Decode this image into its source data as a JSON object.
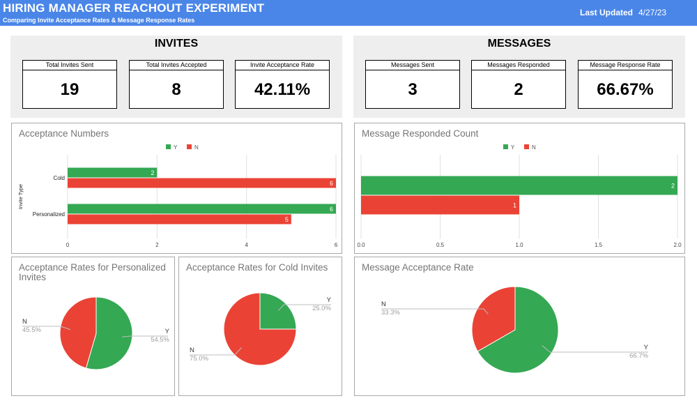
{
  "header": {
    "title": "HIRING MANAGER REACHOUT EXPERIMENT",
    "subtitle": "Comparing Invite Acceptance Rates & Message Response Rates",
    "updated_label": "Last Updated",
    "updated_date": "4/27/23"
  },
  "invites": {
    "title": "INVITES",
    "kpis": [
      {
        "label": "Total Invites Sent",
        "value": "19"
      },
      {
        "label": "Total Invites Accepted",
        "value": "8"
      },
      {
        "label": "Invite Acceptance Rate",
        "value": "42.11%"
      }
    ]
  },
  "messages": {
    "title": "MESSAGES",
    "kpis": [
      {
        "label": "Messages Sent",
        "value": "3"
      },
      {
        "label": "Messages Responded",
        "value": "2"
      },
      {
        "label": "Message Response Rate",
        "value": "66.67%"
      }
    ]
  },
  "colors": {
    "Y": "#34a853",
    "N": "#ea4335",
    "grid": "#e0e0e0",
    "label": "#9e9e9e"
  },
  "chart_data": [
    {
      "type": "bar",
      "orientation": "horizontal",
      "title": "Acceptance Numbers",
      "ylabel": "Invite Type",
      "categories": [
        "Cold",
        "Personalized"
      ],
      "series": [
        {
          "name": "Y",
          "values": [
            2,
            6
          ]
        },
        {
          "name": "N",
          "values": [
            6,
            5
          ]
        }
      ],
      "xlim": [
        0,
        6
      ],
      "ticks": [
        "0",
        "2",
        "4",
        "6"
      ],
      "legend": "top"
    },
    {
      "type": "bar",
      "orientation": "horizontal",
      "title": "Message Responded Count",
      "categories": [
        ""
      ],
      "series": [
        {
          "name": "Y",
          "values": [
            2
          ]
        },
        {
          "name": "N",
          "values": [
            1
          ]
        }
      ],
      "xlim": [
        0,
        2
      ],
      "ticks": [
        "0.0",
        "0.5",
        "1.0",
        "1.5",
        "2.0"
      ],
      "legend": "top"
    },
    {
      "type": "pie",
      "title": "Acceptance Rates for Personalized Invites",
      "slices": [
        {
          "label": "Y",
          "value": 54.5,
          "pct": "54.5%"
        },
        {
          "label": "N",
          "value": 45.5,
          "pct": "45.5%"
        }
      ]
    },
    {
      "type": "pie",
      "title": "Acceptance Rates for Cold Invites",
      "slices": [
        {
          "label": "Y",
          "value": 25.0,
          "pct": "25.0%"
        },
        {
          "label": "N",
          "value": 75.0,
          "pct": "75.0%"
        }
      ]
    },
    {
      "type": "pie",
      "title": "Message Acceptance Rate",
      "slices": [
        {
          "label": "Y",
          "value": 66.7,
          "pct": "66.7%"
        },
        {
          "label": "N",
          "value": 33.3,
          "pct": "33.3%"
        }
      ]
    }
  ]
}
